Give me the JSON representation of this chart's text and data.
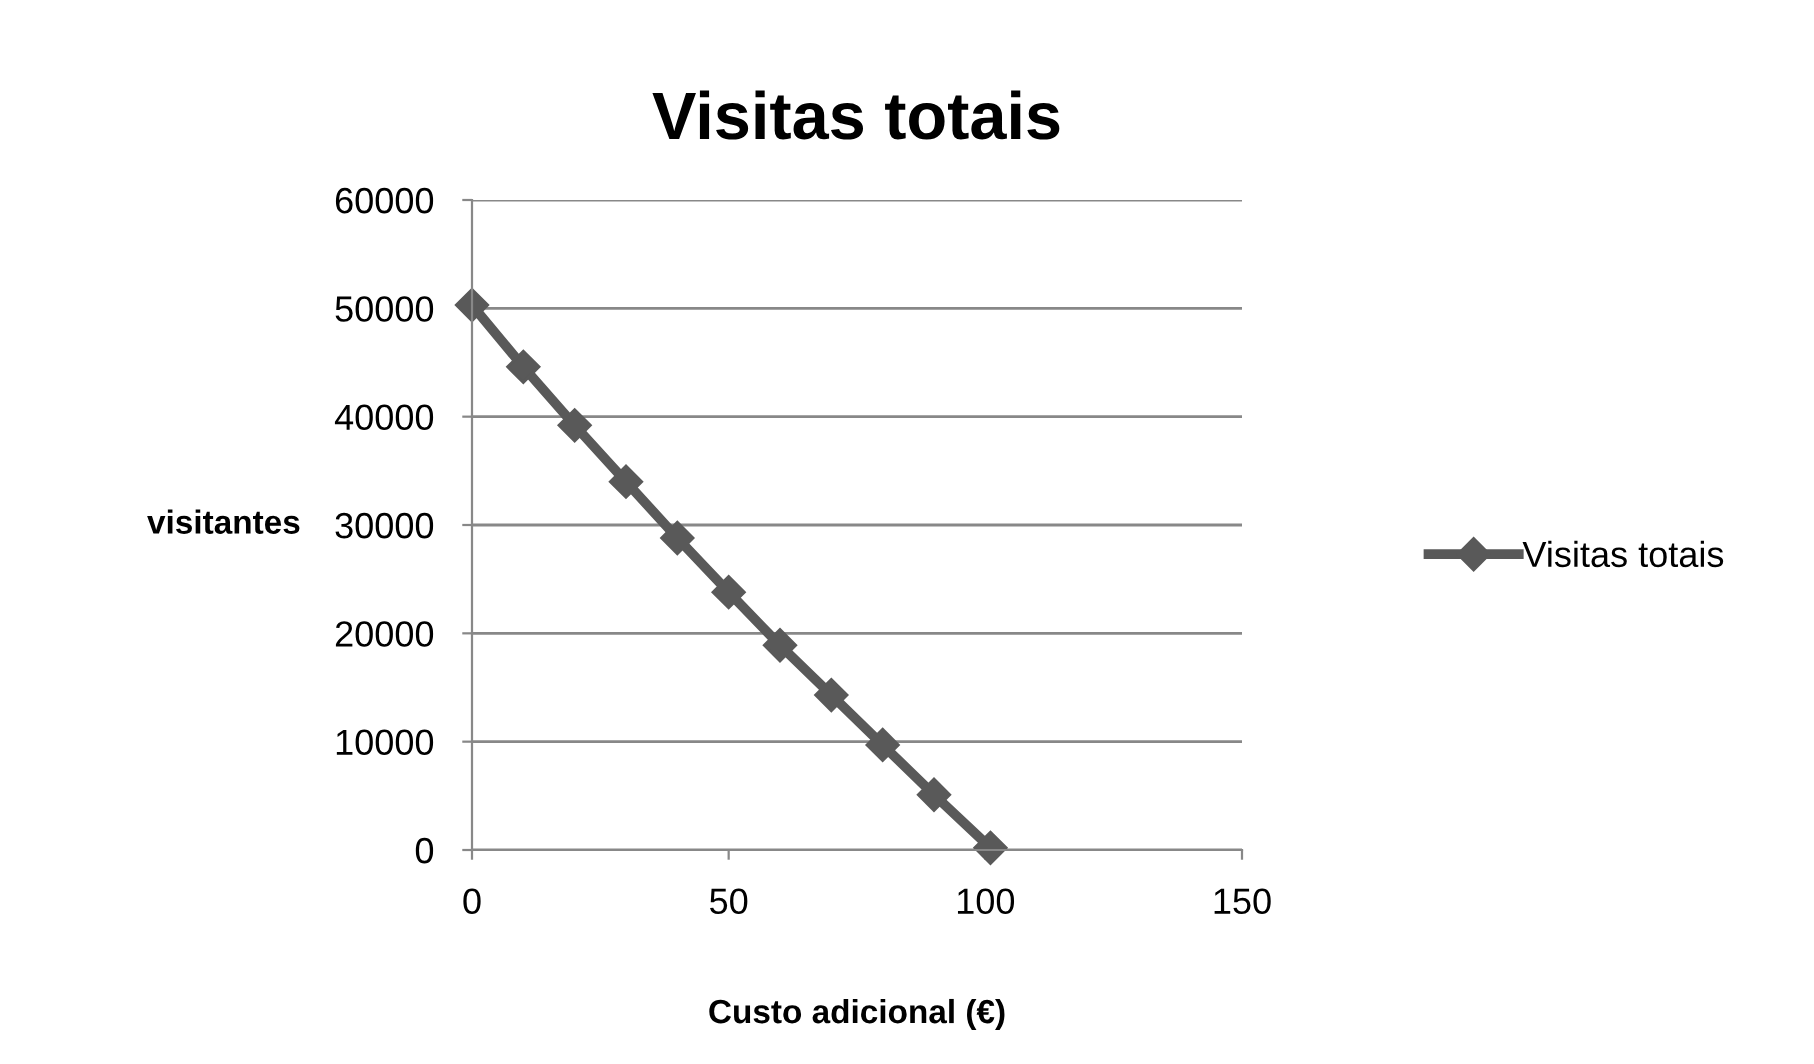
{
  "chart_data": {
    "type": "line",
    "title": "Visitas totais",
    "xlabel": "Custo adicional (€)",
    "ylabel": "visitantes",
    "series": [
      {
        "name": "Visitas totais",
        "color": "#595959",
        "x": [
          0,
          10,
          20,
          30,
          40,
          50,
          60,
          70,
          80,
          90,
          101
        ],
        "values": [
          50300,
          44600,
          39200,
          34000,
          28800,
          23800,
          18900,
          14300,
          9700,
          5100,
          200
        ]
      }
    ],
    "xlim": [
      0,
      150
    ],
    "xticks": [
      0,
      50,
      100,
      150
    ],
    "ylim": [
      0,
      60000
    ],
    "yticks": [
      0,
      10000,
      20000,
      30000,
      40000,
      50000,
      60000
    ],
    "grid": "y",
    "legend": "right",
    "marker": "diamond",
    "line_style": "solid"
  }
}
